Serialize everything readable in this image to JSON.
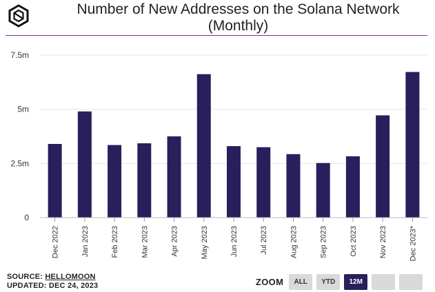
{
  "header": {
    "title_line1": "Number of New Addresses on the Solana Network",
    "title_line2": "(Monthly)"
  },
  "chart_data": {
    "type": "bar",
    "categories": [
      "Dec 2022",
      "Jan 2023",
      "Feb 2023",
      "Mar 2023",
      "Apr 2023",
      "May 2023",
      "Jun 2023",
      "Jul 2023",
      "Aug 2023",
      "Sep 2023",
      "Oct 2023",
      "Nov 2023",
      "Dec 2023*"
    ],
    "values": [
      3.4,
      4.9,
      3.35,
      3.43,
      3.75,
      6.62,
      3.3,
      3.25,
      2.93,
      2.52,
      2.83,
      4.72,
      6.72
    ],
    "unit": "m",
    "ylim": [
      0,
      7.5
    ],
    "yticks": [
      0,
      2.5,
      5,
      7.5
    ],
    "ytick_labels": [
      "0",
      "2.5m",
      "5m",
      "7.5m"
    ],
    "grid": true,
    "bar_color": "#28205c"
  },
  "footer": {
    "source_prefix": "SOURCE: ",
    "source_name": "HELLOMOON",
    "updated": "UPDATED: DEC 24, 2023"
  },
  "zoom": {
    "label": "ZOOM",
    "buttons": [
      {
        "label": "ALL",
        "active": false
      },
      {
        "label": "YTD",
        "active": false
      },
      {
        "label": "12M",
        "active": true
      },
      {
        "label": "",
        "active": false
      },
      {
        "label": "",
        "active": false
      }
    ]
  }
}
